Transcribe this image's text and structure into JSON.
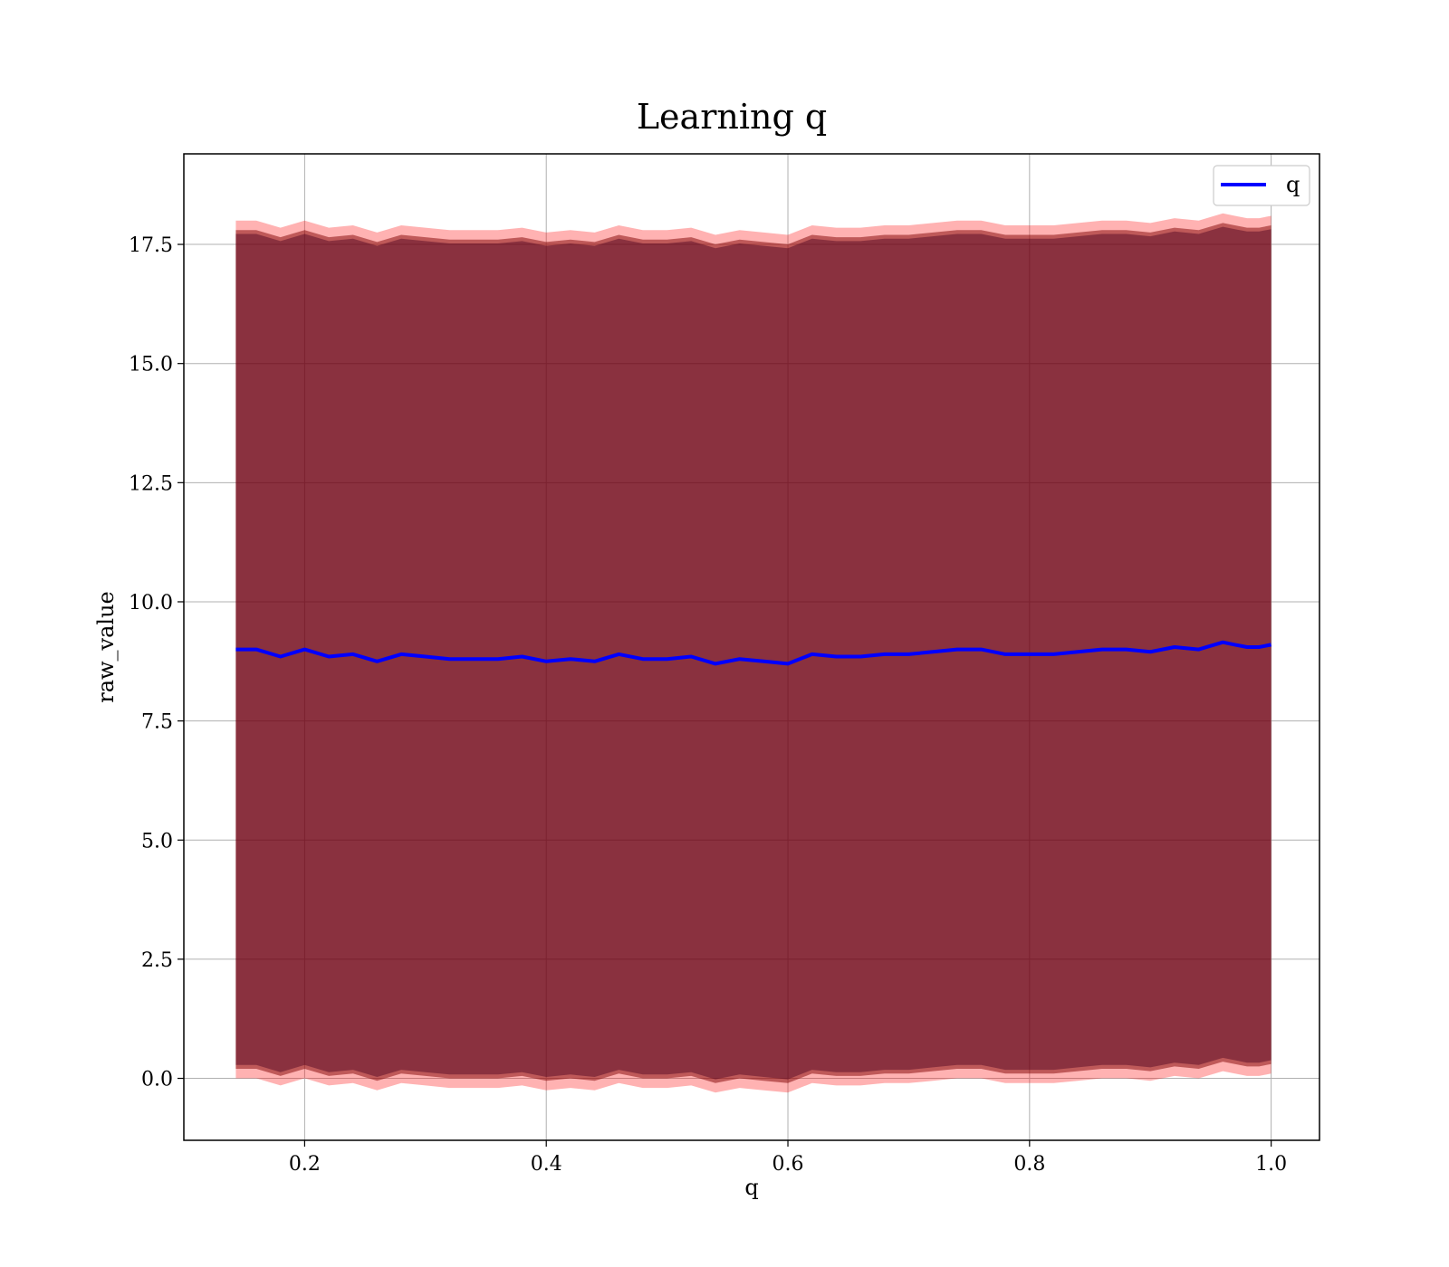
{
  "chart_data": {
    "type": "line",
    "title": "Learning q",
    "xlabel": "q",
    "ylabel": "raw_value",
    "xlim": [
      0.1,
      1.04
    ],
    "ylim": [
      -1.3,
      19.4
    ],
    "xticks": [
      {
        "value": 0.2,
        "label": "0.2"
      },
      {
        "value": 0.4,
        "label": "0.4"
      },
      {
        "value": 0.6,
        "label": "0.6"
      },
      {
        "value": 0.8,
        "label": "0.8"
      },
      {
        "value": 1.0,
        "label": "1.0"
      }
    ],
    "yticks": [
      {
        "value": 0.0,
        "label": "0.0"
      },
      {
        "value": 2.5,
        "label": "2.5"
      },
      {
        "value": 5.0,
        "label": "5.0"
      },
      {
        "value": 7.5,
        "label": "7.5"
      },
      {
        "value": 10.0,
        "label": "10.0"
      },
      {
        "value": 12.5,
        "label": "12.5"
      },
      {
        "value": 15.0,
        "label": "15.0"
      },
      {
        "value": 17.5,
        "label": "17.5"
      }
    ],
    "grid": true,
    "legend": {
      "placement": "upper-right",
      "entries": [
        "q"
      ]
    },
    "series": [
      {
        "name": "q",
        "color": "#0000ff",
        "x": [
          0.143,
          0.16,
          0.18,
          0.2,
          0.22,
          0.24,
          0.26,
          0.28,
          0.3,
          0.32,
          0.34,
          0.36,
          0.38,
          0.4,
          0.42,
          0.44,
          0.46,
          0.48,
          0.5,
          0.52,
          0.54,
          0.56,
          0.58,
          0.6,
          0.62,
          0.64,
          0.66,
          0.68,
          0.7,
          0.72,
          0.74,
          0.76,
          0.78,
          0.8,
          0.82,
          0.84,
          0.86,
          0.88,
          0.9,
          0.92,
          0.94,
          0.96,
          0.97,
          0.98,
          0.99,
          1.0
        ],
        "y": [
          9.0,
          9.0,
          8.85,
          9.0,
          8.85,
          8.9,
          8.75,
          8.9,
          8.85,
          8.8,
          8.8,
          8.8,
          8.85,
          8.75,
          8.8,
          8.75,
          8.9,
          8.8,
          8.8,
          8.85,
          8.7,
          8.8,
          8.75,
          8.7,
          8.9,
          8.85,
          8.85,
          8.9,
          8.9,
          8.95,
          9.0,
          9.0,
          8.9,
          8.9,
          8.9,
          8.95,
          9.0,
          9.0,
          8.95,
          9.05,
          9.0,
          9.15,
          9.1,
          9.05,
          9.05,
          9.1
        ]
      }
    ],
    "bands": [
      {
        "color": "#ff0000",
        "opacity": 0.3,
        "upper": [
          18.0,
          18.0,
          17.85,
          18.0,
          17.85,
          17.9,
          17.75,
          17.9,
          17.85,
          17.8,
          17.8,
          17.8,
          17.85,
          17.75,
          17.8,
          17.75,
          17.9,
          17.8,
          17.8,
          17.85,
          17.7,
          17.8,
          17.75,
          17.7,
          17.9,
          17.85,
          17.85,
          17.9,
          17.9,
          17.95,
          18.0,
          18.0,
          17.9,
          17.9,
          17.9,
          17.95,
          18.0,
          18.0,
          17.95,
          18.05,
          18.0,
          18.15,
          18.1,
          18.05,
          18.05,
          18.1
        ],
        "lower": [
          0.0,
          0.0,
          -0.15,
          0.0,
          -0.15,
          -0.1,
          -0.25,
          -0.1,
          -0.15,
          -0.2,
          -0.2,
          -0.2,
          -0.15,
          -0.25,
          -0.2,
          -0.25,
          -0.1,
          -0.2,
          -0.2,
          -0.15,
          -0.3,
          -0.2,
          -0.25,
          -0.3,
          -0.1,
          -0.15,
          -0.15,
          -0.1,
          -0.1,
          -0.05,
          0.0,
          0.0,
          -0.1,
          -0.1,
          -0.1,
          -0.05,
          0.0,
          0.0,
          -0.05,
          0.05,
          0.0,
          0.15,
          0.1,
          0.05,
          0.05,
          0.1
        ]
      },
      {
        "color": "#800000",
        "opacity": 0.5,
        "upper": [
          17.8,
          17.8,
          17.65,
          17.8,
          17.65,
          17.7,
          17.55,
          17.7,
          17.65,
          17.6,
          17.6,
          17.6,
          17.65,
          17.55,
          17.6,
          17.55,
          17.7,
          17.6,
          17.6,
          17.65,
          17.5,
          17.6,
          17.55,
          17.5,
          17.7,
          17.65,
          17.65,
          17.7,
          17.7,
          17.75,
          17.8,
          17.8,
          17.7,
          17.7,
          17.7,
          17.75,
          17.8,
          17.8,
          17.75,
          17.85,
          17.8,
          17.95,
          17.9,
          17.85,
          17.85,
          17.9
        ],
        "lower": [
          0.2,
          0.2,
          0.05,
          0.2,
          0.05,
          0.1,
          -0.05,
          0.1,
          0.05,
          0.0,
          0.0,
          0.0,
          0.05,
          -0.05,
          0.0,
          -0.05,
          0.1,
          0.0,
          0.0,
          0.05,
          -0.1,
          0.0,
          -0.05,
          -0.1,
          0.1,
          0.05,
          0.05,
          0.1,
          0.1,
          0.15,
          0.2,
          0.2,
          0.1,
          0.1,
          0.1,
          0.15,
          0.2,
          0.2,
          0.15,
          0.25,
          0.2,
          0.35,
          0.3,
          0.25,
          0.25,
          0.3
        ]
      },
      {
        "color": "#4a0020",
        "opacity": 0.45,
        "upper": [
          17.72,
          17.72,
          17.57,
          17.72,
          17.57,
          17.62,
          17.47,
          17.62,
          17.57,
          17.52,
          17.52,
          17.52,
          17.57,
          17.47,
          17.52,
          17.47,
          17.62,
          17.52,
          17.52,
          17.57,
          17.42,
          17.52,
          17.47,
          17.42,
          17.62,
          17.57,
          17.57,
          17.62,
          17.62,
          17.67,
          17.72,
          17.72,
          17.62,
          17.62,
          17.62,
          17.67,
          17.72,
          17.72,
          17.67,
          17.77,
          17.72,
          17.87,
          17.82,
          17.77,
          17.77,
          17.82
        ],
        "lower": [
          0.28,
          0.28,
          0.13,
          0.28,
          0.13,
          0.18,
          0.03,
          0.18,
          0.13,
          0.08,
          0.08,
          0.08,
          0.13,
          0.03,
          0.08,
          0.03,
          0.18,
          0.08,
          0.08,
          0.13,
          -0.02,
          0.08,
          0.03,
          -0.02,
          0.18,
          0.13,
          0.13,
          0.18,
          0.18,
          0.23,
          0.28,
          0.28,
          0.18,
          0.18,
          0.18,
          0.23,
          0.28,
          0.28,
          0.23,
          0.33,
          0.28,
          0.43,
          0.38,
          0.33,
          0.33,
          0.38
        ]
      }
    ]
  }
}
